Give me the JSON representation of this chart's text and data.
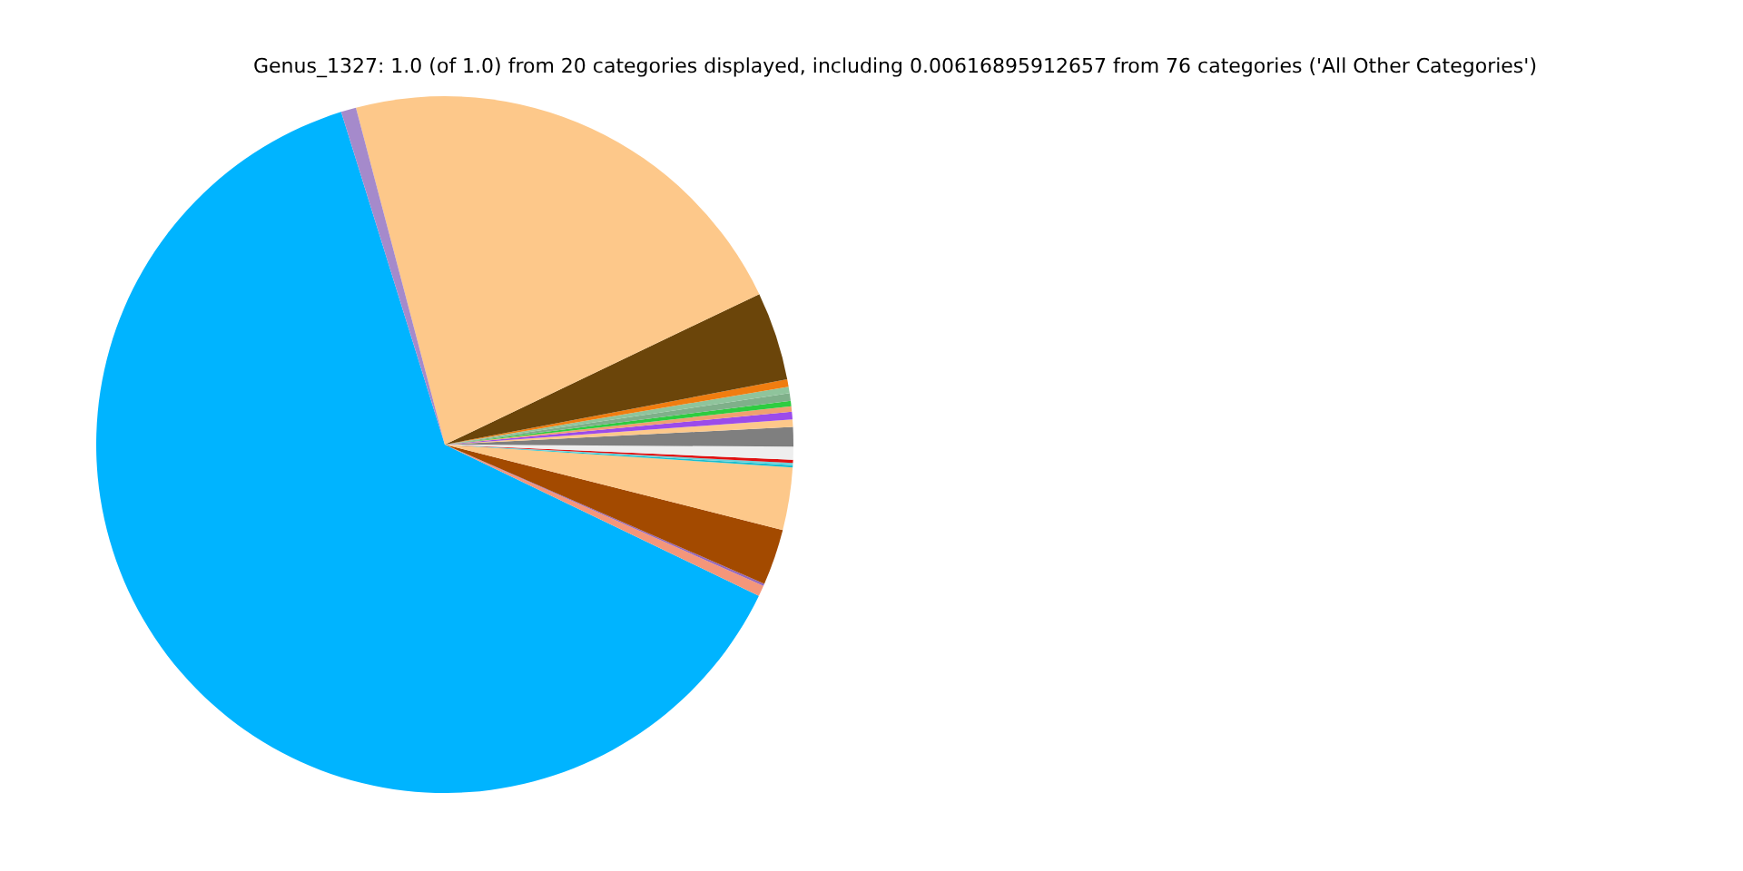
{
  "chart_data": {
    "type": "pie",
    "title": "Genus_1327: 1.0 (of 1.0) from 20 categories displayed, including 0.00616895912657 from 76 categories ('All Other Categories')",
    "categories": [
      null,
      null,
      null,
      null,
      null,
      null,
      null,
      null,
      null,
      null,
      null,
      null,
      null,
      null,
      null,
      null,
      null,
      null,
      null,
      null
    ],
    "values": [
      63.05,
      0.5,
      0.1,
      2.6,
      2.9,
      0.1,
      0.1,
      0.15,
      0.6,
      0.9,
      0.35,
      0.35,
      0.25,
      0.25,
      0.35,
      0.3,
      0.35,
      4.1,
      22.0,
      0.7
    ],
    "colors": [
      "#00b4ff",
      "#f4967a",
      "#9467bd",
      "#a34a00",
      "#fdc88a",
      "#17becf",
      "#6ed0d8",
      "#e01010",
      "#eeeeee",
      "#7f7f7f",
      "#fdc88a",
      "#9b4bea",
      "#f0a070",
      "#2ecc40",
      "#7fb08a",
      "#8fc49c",
      "#f07d10",
      "#6b450a",
      "#fdc88a",
      "#a58acb"
    ]
  }
}
